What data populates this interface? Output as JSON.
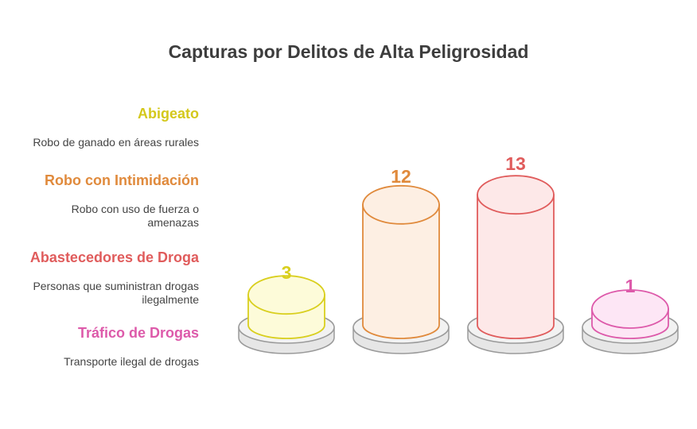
{
  "chart_data": {
    "type": "bar",
    "title": "Capturas por Delitos de Alta Peligrosidad",
    "categories": [
      "Abigeato",
      "Robo con Intimidación",
      "Abastecedores de Droga",
      "Tráfico de Drogas"
    ],
    "values": [
      3,
      12,
      13,
      1
    ],
    "series": [
      {
        "values": [
          3,
          12,
          13,
          1
        ]
      }
    ],
    "descriptions": [
      "Robo de ganado en áreas rurales",
      "Robo con uso de fuerza o amenazas",
      "Personas que suministran drogas ilegalmente",
      "Transporte ilegal de drogas"
    ],
    "colors": {
      "stroke": [
        "#d9cf1e",
        "#e08a3c",
        "#e05c5c",
        "#dd5aaa"
      ],
      "fill": [
        "#fdfbd9",
        "#fdefe3",
        "#fde8e8",
        "#fde6f5"
      ]
    },
    "legend_position": "left",
    "grid": false
  }
}
